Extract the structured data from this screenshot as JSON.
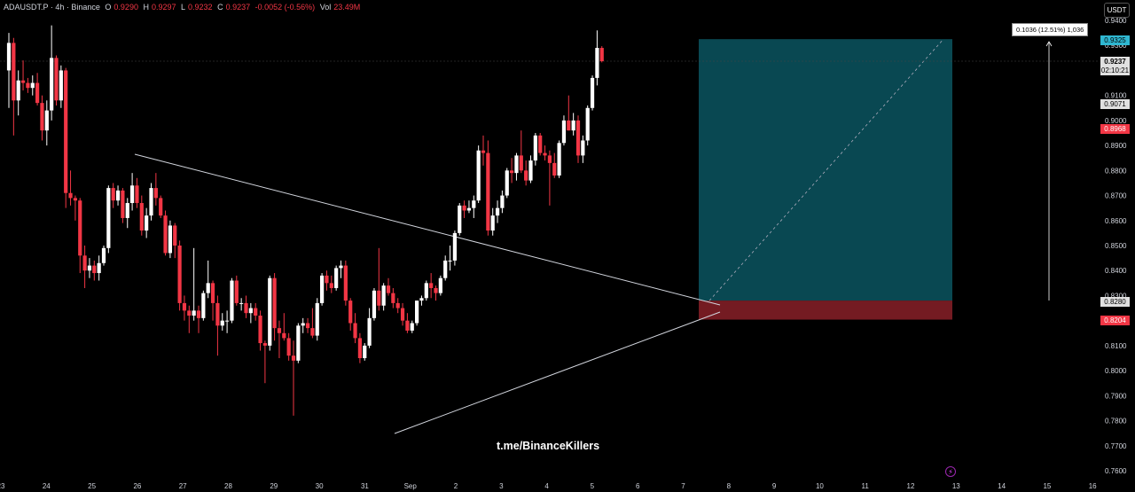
{
  "legend": {
    "symbol": "ADAUSDT.P · 4h · Binance",
    "open_key": "O",
    "open": "0.9290",
    "high_key": "H",
    "high": "0.9297",
    "low_key": "L",
    "low": "0.9232",
    "close_key": "C",
    "close": "0.9237",
    "change": "-0.0052 (-0.56%)",
    "vol_key": "Vol",
    "vol": "23.49M"
  },
  "currency": "USDT",
  "watermark": "t.me/BinanceKillers",
  "measure_label": "0.1036 (12.51%) 1,036",
  "price_tags": {
    "target": "0.9325",
    "current": "0.9237",
    "countdown": "02:10:21",
    "level_a": "0.9071",
    "level_b": "0.8968",
    "entry": "0.8280",
    "stop": "0.8204"
  },
  "colors": {
    "up": "#ffffff",
    "down": "#f23645",
    "target_zone": "#0b5560",
    "stop_zone": "#7a1c24",
    "target_tag": "#2fb7d1",
    "stop_tag": "#f23645",
    "line": "#d1d4dc"
  },
  "chart_data": {
    "type": "candlestick",
    "yrange": [
      0.76,
      0.94
    ],
    "yticks": [
      "0.9400",
      "0.9300",
      "0.9200",
      "0.9100",
      "0.9000",
      "0.8900",
      "0.8800",
      "0.8700",
      "0.8600",
      "0.8500",
      "0.8400",
      "0.8300",
      "0.8200",
      "0.8100",
      "0.8000",
      "0.7900",
      "0.7800",
      "0.7700",
      "0.7600"
    ],
    "xticks": [
      "23",
      "24",
      "25",
      "26",
      "27",
      "28",
      "29",
      "30",
      "31",
      "Sep",
      "2",
      "3",
      "4",
      "5",
      "6",
      "7",
      "8",
      "9",
      "10",
      "11",
      "12",
      "13",
      "14",
      "15",
      "16"
    ],
    "candles": [
      [
        0.92,
        0.935,
        0.905,
        0.931
      ],
      [
        0.931,
        0.933,
        0.894,
        0.908
      ],
      [
        0.908,
        0.92,
        0.902,
        0.916
      ],
      [
        0.916,
        0.924,
        0.912,
        0.915
      ],
      [
        0.915,
        0.917,
        0.911,
        0.913
      ],
      [
        0.913,
        0.918,
        0.91,
        0.915
      ],
      [
        0.915,
        0.919,
        0.906,
        0.907
      ],
      [
        0.907,
        0.91,
        0.892,
        0.896
      ],
      [
        0.896,
        0.908,
        0.89,
        0.904
      ],
      [
        0.904,
        0.938,
        0.9,
        0.925
      ],
      [
        0.925,
        0.926,
        0.906,
        0.908
      ],
      [
        0.908,
        0.922,
        0.905,
        0.92
      ],
      [
        0.92,
        0.921,
        0.865,
        0.871
      ],
      [
        0.871,
        0.88,
        0.866,
        0.869
      ],
      [
        0.869,
        0.87,
        0.86,
        0.868
      ],
      [
        0.868,
        0.869,
        0.839,
        0.846
      ],
      [
        0.846,
        0.85,
        0.833,
        0.84
      ],
      [
        0.84,
        0.845,
        0.837,
        0.842
      ],
      [
        0.842,
        0.844,
        0.836,
        0.839
      ],
      [
        0.839,
        0.846,
        0.836,
        0.843
      ],
      [
        0.843,
        0.85,
        0.842,
        0.849
      ],
      [
        0.849,
        0.874,
        0.847,
        0.873
      ],
      [
        0.873,
        0.875,
        0.865,
        0.868
      ],
      [
        0.868,
        0.874,
        0.866,
        0.872
      ],
      [
        0.872,
        0.873,
        0.859,
        0.861
      ],
      [
        0.861,
        0.869,
        0.857,
        0.867
      ],
      [
        0.867,
        0.879,
        0.864,
        0.874
      ],
      [
        0.874,
        0.877,
        0.865,
        0.867
      ],
      [
        0.867,
        0.87,
        0.854,
        0.856
      ],
      [
        0.856,
        0.865,
        0.853,
        0.862
      ],
      [
        0.862,
        0.875,
        0.86,
        0.873
      ],
      [
        0.873,
        0.879,
        0.866,
        0.869
      ],
      [
        0.869,
        0.87,
        0.861,
        0.862
      ],
      [
        0.862,
        0.864,
        0.846,
        0.847
      ],
      [
        0.847,
        0.86,
        0.845,
        0.858
      ],
      [
        0.858,
        0.859,
        0.845,
        0.85
      ],
      [
        0.85,
        0.852,
        0.824,
        0.827
      ],
      [
        0.827,
        0.83,
        0.82,
        0.824
      ],
      [
        0.824,
        0.826,
        0.815,
        0.822
      ],
      [
        0.822,
        0.849,
        0.82,
        0.824
      ],
      [
        0.824,
        0.826,
        0.815,
        0.821
      ],
      [
        0.821,
        0.832,
        0.82,
        0.831
      ],
      [
        0.831,
        0.844,
        0.829,
        0.835
      ],
      [
        0.835,
        0.836,
        0.82,
        0.827
      ],
      [
        0.827,
        0.83,
        0.806,
        0.818
      ],
      [
        0.818,
        0.823,
        0.816,
        0.82
      ],
      [
        0.82,
        0.824,
        0.815,
        0.82
      ],
      [
        0.82,
        0.837,
        0.819,
        0.836
      ],
      [
        0.836,
        0.838,
        0.826,
        0.827
      ],
      [
        0.827,
        0.829,
        0.824,
        0.827
      ],
      [
        0.827,
        0.83,
        0.821,
        0.823
      ],
      [
        0.823,
        0.827,
        0.819,
        0.825
      ],
      [
        0.825,
        0.827,
        0.82,
        0.822
      ],
      [
        0.822,
        0.824,
        0.808,
        0.811
      ],
      [
        0.811,
        0.812,
        0.795,
        0.81
      ],
      [
        0.81,
        0.838,
        0.808,
        0.837
      ],
      [
        0.837,
        0.839,
        0.812,
        0.817
      ],
      [
        0.817,
        0.82,
        0.805,
        0.815
      ],
      [
        0.815,
        0.823,
        0.812,
        0.813
      ],
      [
        0.813,
        0.815,
        0.804,
        0.806
      ],
      [
        0.806,
        0.812,
        0.782,
        0.804
      ],
      [
        0.804,
        0.819,
        0.803,
        0.818
      ],
      [
        0.818,
        0.821,
        0.815,
        0.819
      ],
      [
        0.819,
        0.821,
        0.815,
        0.817
      ],
      [
        0.817,
        0.825,
        0.813,
        0.814
      ],
      [
        0.814,
        0.829,
        0.812,
        0.827
      ],
      [
        0.827,
        0.839,
        0.826,
        0.838
      ],
      [
        0.838,
        0.84,
        0.832,
        0.835
      ],
      [
        0.835,
        0.838,
        0.831,
        0.833
      ],
      [
        0.833,
        0.842,
        0.832,
        0.841
      ],
      [
        0.841,
        0.844,
        0.837,
        0.842
      ],
      [
        0.842,
        0.844,
        0.826,
        0.828
      ],
      [
        0.828,
        0.829,
        0.816,
        0.819
      ],
      [
        0.819,
        0.823,
        0.811,
        0.813
      ],
      [
        0.813,
        0.815,
        0.803,
        0.805
      ],
      [
        0.805,
        0.811,
        0.804,
        0.81
      ],
      [
        0.81,
        0.825,
        0.809,
        0.821
      ],
      [
        0.821,
        0.833,
        0.82,
        0.832
      ],
      [
        0.832,
        0.849,
        0.824,
        0.826
      ],
      [
        0.826,
        0.835,
        0.824,
        0.834
      ],
      [
        0.834,
        0.837,
        0.83,
        0.831
      ],
      [
        0.831,
        0.833,
        0.825,
        0.827
      ],
      [
        0.827,
        0.829,
        0.823,
        0.825
      ],
      [
        0.825,
        0.827,
        0.818,
        0.82
      ],
      [
        0.82,
        0.823,
        0.815,
        0.816
      ],
      [
        0.816,
        0.82,
        0.815,
        0.819
      ],
      [
        0.819,
        0.828,
        0.818,
        0.828
      ],
      [
        0.828,
        0.83,
        0.826,
        0.829
      ],
      [
        0.829,
        0.836,
        0.828,
        0.835
      ],
      [
        0.835,
        0.839,
        0.829,
        0.833
      ],
      [
        0.833,
        0.834,
        0.828,
        0.831
      ],
      [
        0.831,
        0.838,
        0.83,
        0.837
      ],
      [
        0.837,
        0.846,
        0.836,
        0.844
      ],
      [
        0.844,
        0.85,
        0.84,
        0.844
      ],
      [
        0.844,
        0.856,
        0.842,
        0.855
      ],
      [
        0.855,
        0.867,
        0.854,
        0.866
      ],
      [
        0.866,
        0.868,
        0.861,
        0.864
      ],
      [
        0.864,
        0.868,
        0.863,
        0.865
      ],
      [
        0.865,
        0.87,
        0.861,
        0.868
      ],
      [
        0.868,
        0.89,
        0.867,
        0.888
      ],
      [
        0.888,
        0.894,
        0.882,
        0.887
      ],
      [
        0.887,
        0.892,
        0.854,
        0.856
      ],
      [
        0.856,
        0.865,
        0.854,
        0.862
      ],
      [
        0.862,
        0.868,
        0.859,
        0.865
      ],
      [
        0.865,
        0.872,
        0.863,
        0.87
      ],
      [
        0.87,
        0.881,
        0.869,
        0.88
      ],
      [
        0.88,
        0.885,
        0.875,
        0.879
      ],
      [
        0.879,
        0.887,
        0.876,
        0.886
      ],
      [
        0.886,
        0.896,
        0.879,
        0.88
      ],
      [
        0.88,
        0.884,
        0.874,
        0.876
      ],
      [
        0.876,
        0.886,
        0.875,
        0.884
      ],
      [
        0.884,
        0.895,
        0.882,
        0.894
      ],
      [
        0.894,
        0.895,
        0.886,
        0.887
      ],
      [
        0.887,
        0.89,
        0.884,
        0.886
      ],
      [
        0.886,
        0.888,
        0.866,
        0.883
      ],
      [
        0.883,
        0.887,
        0.877,
        0.878
      ],
      [
        0.878,
        0.892,
        0.877,
        0.891
      ],
      [
        0.891,
        0.902,
        0.89,
        0.9
      ],
      [
        0.9,
        0.91,
        0.896,
        0.896
      ],
      [
        0.896,
        0.903,
        0.894,
        0.9
      ],
      [
        0.9,
        0.902,
        0.883,
        0.886
      ],
      [
        0.886,
        0.894,
        0.883,
        0.892
      ],
      [
        0.892,
        0.906,
        0.89,
        0.905
      ],
      [
        0.905,
        0.918,
        0.904,
        0.917
      ],
      [
        0.917,
        0.936,
        0.914,
        0.929
      ],
      [
        0.929,
        0.9297,
        0.9232,
        0.9237
      ]
    ]
  }
}
